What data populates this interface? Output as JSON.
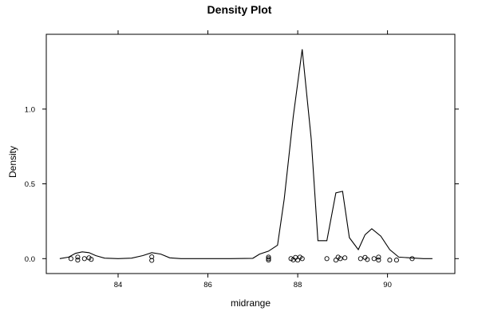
{
  "chart_data": {
    "type": "line",
    "title": "Density Plot",
    "xlabel": "midrange",
    "ylabel": "Density",
    "xlim": [
      82.4,
      91.5
    ],
    "ylim": [
      -0.1,
      1.5
    ],
    "x_ticks": [
      84,
      86,
      88,
      90
    ],
    "x_tick_labels": [
      "84",
      "86",
      "88",
      "90"
    ],
    "y_ticks": [
      0,
      0.5,
      1.0
    ],
    "y_tick_labels": [
      "0.0",
      "0.5",
      "1.0"
    ],
    "grid": false,
    "series": [
      {
        "x": [
          82.7,
          82.9,
          83.05,
          83.2,
          83.35,
          83.5,
          83.7,
          84.0,
          84.3,
          84.55,
          84.75,
          84.95,
          85.15,
          85.4,
          86.0,
          86.5,
          87.0,
          87.15,
          87.35,
          87.55,
          87.7,
          87.9,
          88.1,
          88.3,
          88.45,
          88.65,
          88.85,
          89.0,
          89.15,
          89.35,
          89.5,
          89.65,
          89.85,
          90.05,
          90.25,
          90.5,
          90.8,
          91.0
        ],
        "y": [
          0.0,
          0.01,
          0.035,
          0.045,
          0.04,
          0.02,
          0.003,
          0.0,
          0.003,
          0.02,
          0.04,
          0.03,
          0.005,
          0.0,
          0.0,
          0.0,
          0.002,
          0.03,
          0.05,
          0.09,
          0.4,
          0.95,
          1.4,
          0.8,
          0.12,
          0.12,
          0.44,
          0.45,
          0.14,
          0.06,
          0.16,
          0.2,
          0.15,
          0.06,
          0.01,
          0.005,
          0.0,
          0.0
        ]
      }
    ],
    "rug_points": [
      {
        "x": 82.95,
        "y": 0.0
      },
      {
        "x": 83.1,
        "y": -0.01
      },
      {
        "x": 83.1,
        "y": 0.01
      },
      {
        "x": 83.25,
        "y": 0.0
      },
      {
        "x": 83.35,
        "y": 0.005
      },
      {
        "x": 83.4,
        "y": -0.005
      },
      {
        "x": 84.75,
        "y": 0.012
      },
      {
        "x": 84.75,
        "y": -0.012
      },
      {
        "x": 87.35,
        "y": -0.01
      },
      {
        "x": 87.35,
        "y": 0.0
      },
      {
        "x": 87.35,
        "y": 0.01
      },
      {
        "x": 87.85,
        "y": 0.0
      },
      {
        "x": 87.9,
        "y": -0.008
      },
      {
        "x": 87.95,
        "y": 0.008
      },
      {
        "x": 88.0,
        "y": -0.01
      },
      {
        "x": 88.05,
        "y": 0.01
      },
      {
        "x": 88.1,
        "y": 0.0
      },
      {
        "x": 88.65,
        "y": 0.0
      },
      {
        "x": 88.85,
        "y": -0.01
      },
      {
        "x": 88.9,
        "y": 0.01
      },
      {
        "x": 88.95,
        "y": 0.0
      },
      {
        "x": 89.05,
        "y": 0.005
      },
      {
        "x": 89.4,
        "y": 0.0
      },
      {
        "x": 89.5,
        "y": 0.008
      },
      {
        "x": 89.55,
        "y": -0.006
      },
      {
        "x": 89.7,
        "y": 0.0
      },
      {
        "x": 89.8,
        "y": 0.01
      },
      {
        "x": 89.8,
        "y": -0.01
      },
      {
        "x": 90.05,
        "y": -0.01
      },
      {
        "x": 90.2,
        "y": -0.01
      },
      {
        "x": 90.55,
        "y": 0.0
      }
    ]
  }
}
